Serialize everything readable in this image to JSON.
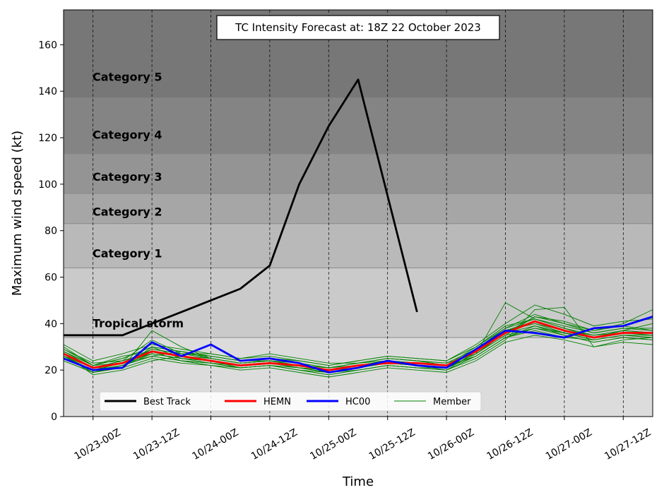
{
  "chart_data": {
    "type": "line",
    "title": "TC Intensity Forecast at: 18Z 22 October 2023",
    "xlabel": "Time",
    "ylabel": "Maximum wind speed (kt)",
    "x_tick_labels": [
      "10/23-00Z",
      "10/23-12Z",
      "10/24-00Z",
      "10/24-12Z",
      "10/25-00Z",
      "10/25-12Z",
      "10/26-00Z",
      "10/26-12Z",
      "10/27-00Z",
      "10/27-12Z"
    ],
    "x_range_hours": [
      -6,
      114
    ],
    "y_ticks": [
      0,
      20,
      40,
      60,
      80,
      100,
      120,
      140,
      160
    ],
    "ylim": [
      0,
      175
    ],
    "grid": "vertical dashed lines at x ticks",
    "legend_position": "bottom-left",
    "categories": [
      {
        "label": "Tropical storm",
        "min": 0,
        "max": 34,
        "color": "#dcdcdc",
        "label_y": 40
      },
      {
        "label": "",
        "min": 34,
        "max": 64,
        "color": "#cacaca"
      },
      {
        "label": "Category 1",
        "min": 64,
        "max": 83,
        "color": "#b9b9b9",
        "label_y": 70
      },
      {
        "label": "Category 2",
        "min": 83,
        "max": 96,
        "color": "#a6a6a6",
        "label_y": 88
      },
      {
        "label": "Category 3",
        "min": 96,
        "max": 113,
        "color": "#949494",
        "label_y": 103
      },
      {
        "label": "Category 4",
        "min": 113,
        "max": 137,
        "color": "#848484",
        "label_y": 121
      },
      {
        "label": "Category 5",
        "min": 137,
        "max": 175,
        "color": "#777777",
        "label_y": 146
      }
    ],
    "series": [
      {
        "name": "Best Track",
        "color": "#000000",
        "width": 2.8,
        "x": [
          -6,
          0,
          6,
          12,
          18,
          24,
          30,
          36,
          42,
          48,
          54,
          60,
          66
        ],
        "values": [
          35,
          35,
          35,
          40,
          45,
          50,
          55,
          65,
          100,
          125,
          145,
          95,
          45
        ]
      },
      {
        "name": "HEMN",
        "color": "#ff0000",
        "width": 2.8,
        "x": [
          -6,
          0,
          6,
          12,
          18,
          24,
          30,
          36,
          42,
          48,
          54,
          60,
          66,
          72,
          78,
          84,
          90,
          96,
          102,
          108,
          114
        ],
        "values": [
          27,
          21,
          23,
          28,
          26,
          24,
          22,
          23,
          22,
          20,
          22,
          23,
          23,
          22,
          28,
          36,
          41,
          37,
          34,
          36,
          36
        ]
      },
      {
        "name": "HC00",
        "color": "#0000ff",
        "width": 2.8,
        "x": [
          -6,
          0,
          6,
          12,
          18,
          24,
          30,
          36,
          42,
          48,
          54,
          60,
          66,
          72,
          78,
          84,
          90,
          96,
          102,
          108,
          114
        ],
        "values": [
          25,
          20,
          21,
          32,
          26,
          31,
          24,
          25,
          23,
          19,
          21,
          24,
          22,
          21,
          29,
          37,
          36,
          34,
          38,
          39,
          43
        ]
      }
    ],
    "member_legend": {
      "name": "Member",
      "color": "#008000"
    },
    "members": {
      "x": [
        -6,
        0,
        6,
        12,
        18,
        24,
        30,
        36,
        42,
        48,
        54,
        60,
        66,
        72,
        78,
        84,
        90,
        96,
        102,
        108,
        114
      ],
      "color": "#008000",
      "values": [
        [
          24,
          19,
          22,
          26,
          24,
          23,
          21,
          22,
          20,
          18,
          20,
          22,
          21,
          20,
          26,
          34,
          38,
          36,
          33,
          35,
          35
        ],
        [
          30,
          22,
          25,
          30,
          28,
          26,
          24,
          25,
          24,
          22,
          24,
          26,
          25,
          24,
          30,
          38,
          44,
          40,
          36,
          38,
          38
        ],
        [
          26,
          20,
          21,
          37,
          30,
          25,
          23,
          24,
          22,
          20,
          21,
          24,
          22,
          21,
          27,
          49,
          42,
          38,
          34,
          37,
          40
        ],
        [
          28,
          21,
          24,
          27,
          25,
          24,
          22,
          23,
          21,
          19,
          21,
          23,
          22,
          20,
          25,
          33,
          46,
          47,
          30,
          33,
          34
        ],
        [
          25,
          20,
          22,
          29,
          27,
          25,
          23,
          24,
          22,
          20,
          22,
          24,
          23,
          22,
          29,
          37,
          40,
          37,
          35,
          36,
          36
        ],
        [
          27,
          18,
          20,
          24,
          26,
          24,
          21,
          22,
          21,
          19,
          20,
          22,
          21,
          20,
          28,
          36,
          39,
          35,
          32,
          34,
          33
        ],
        [
          29,
          23,
          24,
          33,
          27,
          27,
          25,
          27,
          25,
          23,
          23,
          25,
          24,
          23,
          27,
          35,
          43,
          41,
          37,
          39,
          37
        ],
        [
          26,
          21,
          21,
          30,
          25,
          23,
          22,
          23,
          21,
          20,
          22,
          24,
          23,
          22,
          26,
          34,
          37,
          34,
          33,
          35,
          34
        ],
        [
          25,
          20,
          23,
          26,
          28,
          26,
          24,
          24,
          22,
          21,
          23,
          25,
          24,
          22,
          30,
          39,
          42,
          38,
          35,
          37,
          36
        ],
        [
          28,
          22,
          26,
          28,
          24,
          22,
          21,
          22,
          20,
          18,
          20,
          22,
          21,
          21,
          27,
          36,
          41,
          37,
          34,
          36,
          35
        ],
        [
          24,
          19,
          21,
          25,
          23,
          22,
          20,
          21,
          19,
          17,
          19,
          21,
          20,
          19,
          24,
          32,
          35,
          33,
          30,
          32,
          31
        ],
        [
          31,
          24,
          27,
          31,
          29,
          27,
          25,
          26,
          24,
          22,
          24,
          26,
          25,
          24,
          31,
          40,
          48,
          44,
          39,
          41,
          42
        ],
        [
          27,
          21,
          24,
          28,
          26,
          25,
          23,
          24,
          22,
          21,
          22,
          24,
          23,
          22,
          28,
          37,
          40,
          36,
          34,
          36,
          35
        ],
        [
          26,
          19,
          22,
          27,
          25,
          24,
          22,
          23,
          21,
          19,
          21,
          23,
          22,
          21,
          26,
          34,
          39,
          36,
          33,
          35,
          34
        ],
        [
          28,
          22,
          23,
          29,
          27,
          26,
          24,
          25,
          23,
          21,
          23,
          25,
          24,
          23,
          29,
          38,
          42,
          39,
          36,
          38,
          37
        ],
        [
          25,
          20,
          22,
          26,
          24,
          23,
          21,
          22,
          20,
          19,
          21,
          23,
          22,
          21,
          27,
          35,
          38,
          35,
          32,
          34,
          33
        ],
        [
          29,
          22,
          25,
          30,
          28,
          25,
          23,
          24,
          23,
          21,
          23,
          24,
          23,
          22,
          28,
          36,
          43,
          40,
          37,
          40,
          46
        ],
        [
          26,
          21,
          23,
          27,
          25,
          24,
          22,
          23,
          21,
          20,
          22,
          24,
          23,
          22,
          28,
          37,
          41,
          37,
          34,
          37,
          36
        ]
      ]
    }
  }
}
